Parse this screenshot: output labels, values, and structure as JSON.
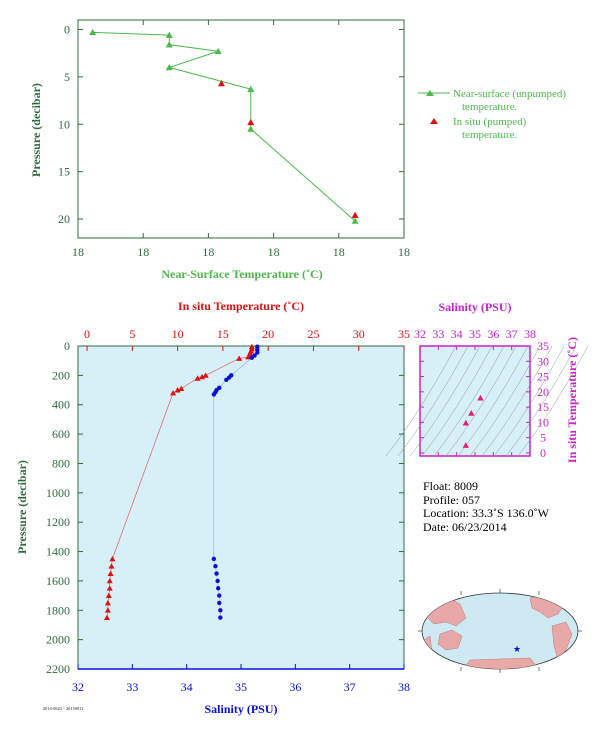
{
  "colors": {
    "green": "#4cb94c",
    "red": "#e01010",
    "blue": "#0a10d8",
    "magenta": "#cc22cc",
    "axis_green": "#2f6b3f",
    "panel_bg": "#d7eff7"
  },
  "chart_data": [
    {
      "type": "line",
      "title": "",
      "xlabel": "Near-Surface Temperature (˚C)",
      "ylabel": "Pressure (decibar)",
      "x_tick_labels": [
        "18",
        "18",
        "18",
        "18",
        "18",
        "18"
      ],
      "y_ticks": [
        0,
        5,
        10,
        15,
        20
      ],
      "ylim": [
        -1,
        22
      ],
      "y_inverted": true,
      "note_x_values": "x axis tick labels all print 18; x values expressed as relative position 0-1 along the temperature axis",
      "series": [
        {
          "name": "Near-surface (unpumped) temperature.",
          "marker": "triangle",
          "color": "#4cb94c",
          "points": [
            {
              "x": 0.045,
              "y": 0.3
            },
            {
              "x": 0.28,
              "y": 0.6
            },
            {
              "x": 0.28,
              "y": 1.6
            },
            {
              "x": 0.43,
              "y": 2.3
            },
            {
              "x": 0.28,
              "y": 4.0
            },
            {
              "x": 0.53,
              "y": 6.3
            },
            {
              "x": 0.53,
              "y": 10.5
            },
            {
              "x": 0.85,
              "y": 20.2
            }
          ]
        },
        {
          "name": "In situ (pumped) temperature.",
          "marker": "triangle",
          "color": "#e01010",
          "points": [
            {
              "x": 0.44,
              "y": 5.7
            },
            {
              "x": 0.53,
              "y": 9.8
            },
            {
              "x": 0.85,
              "y": 19.6
            }
          ]
        }
      ]
    },
    {
      "type": "scatter",
      "title": "",
      "top_xlabel": "In situ Temperature (˚C)",
      "bottom_xlabel": "Salinity (PSU)",
      "ylabel": "Pressure (decibar)",
      "temperature_ticks": [
        0,
        5,
        10,
        15,
        20,
        25,
        30,
        35
      ],
      "salinity_ticks": [
        32,
        33,
        34,
        35,
        36,
        37,
        38
      ],
      "pressure_ticks": [
        0,
        200,
        400,
        600,
        800,
        1000,
        1200,
        1400,
        1600,
        1800,
        2000,
        2200
      ],
      "temperature_range": [
        -1,
        35
      ],
      "salinity_range": [
        32,
        38
      ],
      "pressure_range": [
        0,
        2200
      ],
      "series": [
        {
          "name": "In situ Temperature",
          "color": "#e01010",
          "marker": "triangle",
          "points": [
            {
              "t": 18.2,
              "p": 5
            },
            {
              "t": 18.2,
              "p": 20
            },
            {
              "t": 18.1,
              "p": 35
            },
            {
              "t": 18.0,
              "p": 50
            },
            {
              "t": 17.9,
              "p": 65
            },
            {
              "t": 17.8,
              "p": 75
            },
            {
              "t": 16.8,
              "p": 85
            },
            {
              "t": 13.1,
              "p": 200
            },
            {
              "t": 12.7,
              "p": 210
            },
            {
              "t": 12.2,
              "p": 220
            },
            {
              "t": 10.4,
              "p": 290
            },
            {
              "t": 10.0,
              "p": 300
            },
            {
              "t": 9.5,
              "p": 320
            },
            {
              "t": 2.8,
              "p": 1450
            },
            {
              "t": 2.7,
              "p": 1500
            },
            {
              "t": 2.6,
              "p": 1550
            },
            {
              "t": 2.5,
              "p": 1600
            },
            {
              "t": 2.5,
              "p": 1650
            },
            {
              "t": 2.4,
              "p": 1700
            },
            {
              "t": 2.3,
              "p": 1750
            },
            {
              "t": 2.3,
              "p": 1800
            },
            {
              "t": 2.2,
              "p": 1850
            }
          ]
        },
        {
          "name": "Salinity",
          "color": "#0a10d8",
          "marker": "dot",
          "points": [
            {
              "s": 35.3,
              "p": 5
            },
            {
              "s": 35.3,
              "p": 25
            },
            {
              "s": 35.3,
              "p": 45
            },
            {
              "s": 35.25,
              "p": 65
            },
            {
              "s": 35.2,
              "p": 80
            },
            {
              "s": 34.82,
              "p": 200
            },
            {
              "s": 34.78,
              "p": 215
            },
            {
              "s": 34.73,
              "p": 230
            },
            {
              "s": 34.6,
              "p": 285
            },
            {
              "s": 34.55,
              "p": 300
            },
            {
              "s": 34.53,
              "p": 315
            },
            {
              "s": 34.5,
              "p": 330
            },
            {
              "s": 34.5,
              "p": 1450
            },
            {
              "s": 34.53,
              "p": 1500
            },
            {
              "s": 34.55,
              "p": 1550
            },
            {
              "s": 34.57,
              "p": 1600
            },
            {
              "s": 34.58,
              "p": 1650
            },
            {
              "s": 34.6,
              "p": 1700
            },
            {
              "s": 34.6,
              "p": 1750
            },
            {
              "s": 34.62,
              "p": 1800
            },
            {
              "s": 34.62,
              "p": 1850
            }
          ]
        }
      ]
    },
    {
      "type": "scatter",
      "title": "Salinity (PSU)",
      "ylabel": "In situ Temperature (˚C)",
      "x_ticks": [
        32,
        33,
        34,
        35,
        36,
        37,
        38
      ],
      "y_ticks": [
        0,
        5,
        10,
        15,
        20,
        25,
        30,
        35
      ],
      "xlim": [
        32,
        38
      ],
      "ylim": [
        -1,
        35
      ],
      "series": [
        {
          "name": "T-S",
          "color": "#e0207a",
          "marker": "triangle",
          "points": [
            {
              "s": 34.5,
              "t": 2.5
            },
            {
              "s": 34.5,
              "t": 9.8
            },
            {
              "s": 34.8,
              "t": 13.0
            },
            {
              "s": 35.3,
              "t": 18.0
            }
          ]
        }
      ]
    }
  ],
  "float_info": {
    "float": "Float:  8009",
    "profile": "Profile:  057",
    "location": "Location:  33.3˚S  136.0˚W",
    "date": "Date:  06/23/2014"
  },
  "stamp": "2014-0623 - 20150812"
}
